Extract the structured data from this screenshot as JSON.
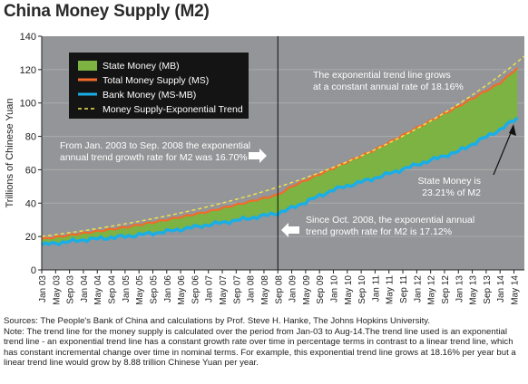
{
  "title": "China Money Supply (M2)",
  "chart_data": {
    "type": "area",
    "ylabel": "Trillions of Chinese Yuan",
    "ylim": [
      0,
      140
    ],
    "y_ticks": [
      0,
      20,
      40,
      60,
      80,
      100,
      120,
      140
    ],
    "x_tick_labels": [
      "Jan 03",
      "May 03",
      "Sep 03",
      "Jan 04",
      "May 04",
      "Sep 04",
      "Jan 05",
      "May 05",
      "Sep 05",
      "Jan 06",
      "May 06",
      "Sep 06",
      "Jan 07",
      "May 07",
      "Sep 07",
      "Jan 08",
      "May 08",
      "Sep 08",
      "Jan 09",
      "May 09",
      "Sep 09",
      "Jan 10",
      "May 10",
      "Sep 10",
      "Jan 11",
      "May 11",
      "Sep 11",
      "Jan 12",
      "May 12",
      "Sep 12",
      "Jan 13",
      "May 13",
      "Sep 13",
      "Jan 14",
      "May 14"
    ],
    "x_range_months": [
      0,
      139
    ],
    "divider_tick": "Sep 08",
    "series": [
      {
        "name": "State Money (MB)",
        "type": "area",
        "color": "#7cb342",
        "description": "difference between Total Money Supply and Bank Money"
      },
      {
        "name": "Total Money Supply (MS)",
        "type": "line",
        "color": "#f26b2a",
        "points": [
          [
            "Jan 03",
            18.5
          ],
          [
            "Jan 04",
            22
          ],
          [
            "Jan 05",
            25.5
          ],
          [
            "Jan 06",
            30
          ],
          [
            "Jan 07",
            35
          ],
          [
            "Jan 08",
            41
          ],
          [
            "Sep 08",
            45
          ],
          [
            "Jan 09",
            50
          ],
          [
            "Jan 10",
            61
          ],
          [
            "Jan 11",
            72
          ],
          [
            "Jan 12",
            85
          ],
          [
            "Jan 13",
            98
          ],
          [
            "Jan 14",
            112
          ],
          [
            "Jun 14",
            121
          ]
        ]
      },
      {
        "name": "Bank Money (MS-MB)",
        "type": "line",
        "color": "#1aaee6",
        "points": [
          [
            "Jan 03",
            15
          ],
          [
            "Jan 04",
            18
          ],
          [
            "Jan 05",
            20
          ],
          [
            "Jan 06",
            23
          ],
          [
            "Jan 07",
            27
          ],
          [
            "Jan 08",
            31
          ],
          [
            "Sep 08",
            34
          ],
          [
            "Jan 09",
            37
          ],
          [
            "Jan 10",
            48
          ],
          [
            "Jan 11",
            55
          ],
          [
            "Jan 12",
            63
          ],
          [
            "Jan 13",
            71
          ],
          [
            "Jan 14",
            84
          ],
          [
            "Jun 14",
            91
          ]
        ]
      },
      {
        "name": "Money Supply-Exponential Trend",
        "type": "line",
        "style": "dashed",
        "color": "#f2e64c",
        "points": [
          [
            "Jan 03",
            20
          ],
          [
            "Aug 14",
            128
          ]
        ]
      }
    ],
    "legend_position": "top-left",
    "grid": true
  },
  "annotations": {
    "trend_2014": [
      "The exponential trend line grows",
      "at a constant annual rate of 18.16%"
    ],
    "trend_pre2008": [
      "From Jan. 2003 to Sep. 2008 the exponential",
      "annual trend growth rate for M2 was 16.70%"
    ],
    "trend_post2008": [
      "Since Oct. 2008, the exponential annual",
      "trend growth rate for M2 is 17.12%"
    ],
    "state_money_share": [
      "State Money is",
      "23.21% of M2"
    ]
  },
  "notes": {
    "sources": "Sources: The People's Bank of China and calculations by Prof. Steve H. Hanke, The Johns Hopkins University.",
    "note": "Note: The trend line for the money supply is calculated over the period from Jan-03 to Aug-14.The trend line used is an exponential trend line - an exponential trend line has a constant growth rate over time in percentage terms in contrast to a linear trend line, which has constant incremental change over time in nominal terms. For example, this exponential trend line grows at 18.16% per year but a linear trend line would grow by 8.88 trillion Chinese Yuan per year."
  }
}
